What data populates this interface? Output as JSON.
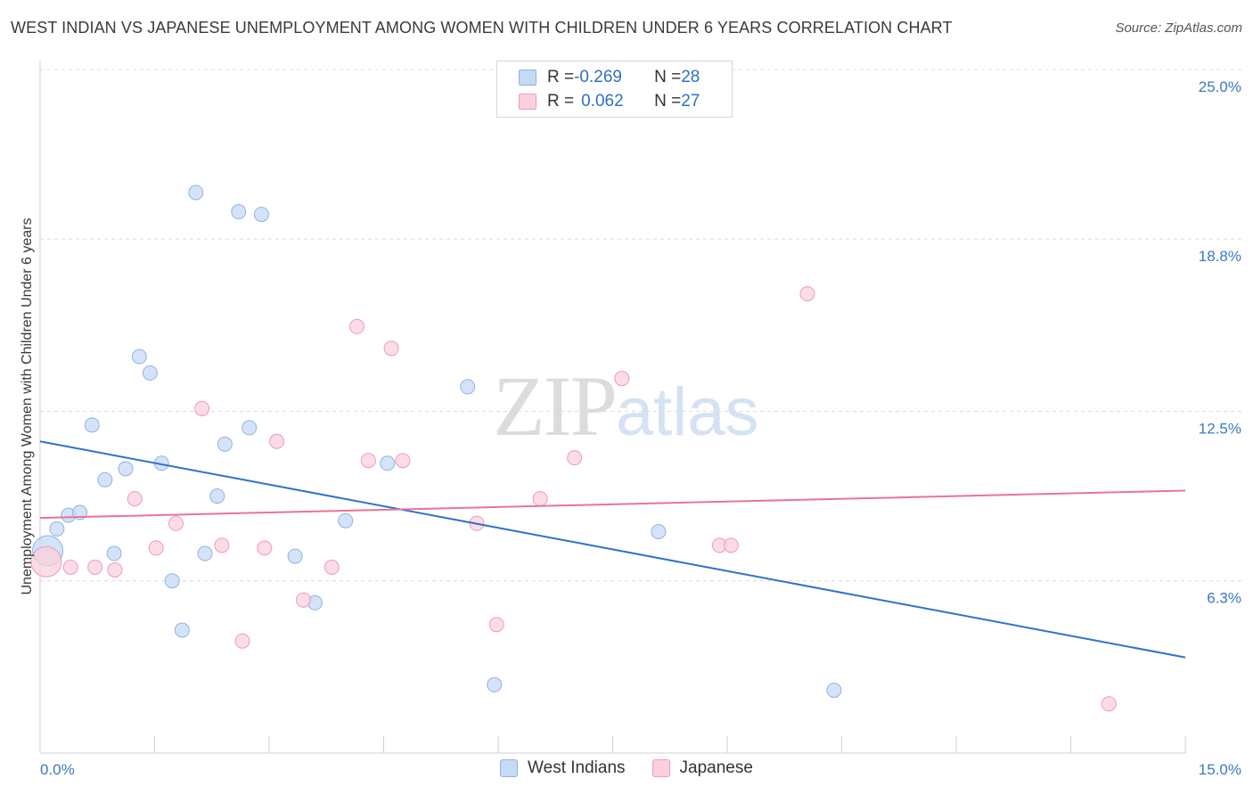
{
  "title": "WEST INDIAN VS JAPANESE UNEMPLOYMENT AMONG WOMEN WITH CHILDREN UNDER 6 YEARS CORRELATION CHART",
  "source": "Source: ZipAtlas.com",
  "watermark": {
    "zip": "ZIP",
    "atlas": "atlas"
  },
  "legend": {
    "rows": [
      {
        "r_label": "R = ",
        "r_value": "-0.269",
        "n_label": "N = ",
        "n_value": "28"
      },
      {
        "r_label": "R = ",
        "r_value": "0.062",
        "n_label": "N = ",
        "n_value": "27"
      }
    ]
  },
  "bottom_legend": {
    "series1": "West Indians",
    "series2": "Japanese"
  },
  "colors": {
    "west_indians_fill": "#c5daf5",
    "west_indians_stroke": "#8fb3e3",
    "west_indians_line": "#2e72cc",
    "japanese_fill": "#fbd0dc",
    "japanese_stroke": "#ee9bb4",
    "japanese_line": "#e8739b",
    "tick_label": "#3b78c4"
  },
  "chart_data": {
    "type": "scatter",
    "title": "WEST INDIAN VS JAPANESE UNEMPLOYMENT AMONG WOMEN WITH CHILDREN UNDER 6 YEARS CORRELATION CHART",
    "xlabel": "",
    "ylabel": "Unemployment Among Women with Children Under 6 years",
    "xlim": [
      0,
      15
    ],
    "ylim": [
      0,
      25
    ],
    "x_tick_labels": [
      "0.0%",
      "15.0%"
    ],
    "y_ticks": [
      6.3,
      12.5,
      18.8,
      25.0
    ],
    "y_tick_labels": [
      "6.3%",
      "12.5%",
      "18.8%",
      "25.0%"
    ],
    "grid": "horizontal dashed",
    "legend_position": "top-center",
    "series": [
      {
        "name": "West Indians",
        "r": -0.269,
        "n": 28,
        "trend": {
          "x": [
            0,
            15
          ],
          "y": [
            11.4,
            3.5
          ]
        },
        "points": [
          {
            "x": 0.1,
            "y": 7.4,
            "size": "large"
          },
          {
            "x": 0.22,
            "y": 8.2
          },
          {
            "x": 0.37,
            "y": 8.7
          },
          {
            "x": 0.52,
            "y": 8.8
          },
          {
            "x": 0.68,
            "y": 12.0
          },
          {
            "x": 0.85,
            "y": 10.0
          },
          {
            "x": 0.97,
            "y": 7.3
          },
          {
            "x": 1.12,
            "y": 10.4
          },
          {
            "x": 1.3,
            "y": 14.5
          },
          {
            "x": 1.44,
            "y": 13.9
          },
          {
            "x": 1.59,
            "y": 10.6
          },
          {
            "x": 1.73,
            "y": 6.3
          },
          {
            "x": 1.86,
            "y": 4.5
          },
          {
            "x": 2.04,
            "y": 20.5
          },
          {
            "x": 2.16,
            "y": 7.3
          },
          {
            "x": 2.32,
            "y": 9.4
          },
          {
            "x": 2.42,
            "y": 11.3
          },
          {
            "x": 2.6,
            "y": 19.8
          },
          {
            "x": 2.74,
            "y": 11.9
          },
          {
            "x": 2.9,
            "y": 19.7
          },
          {
            "x": 3.34,
            "y": 7.2
          },
          {
            "x": 3.6,
            "y": 5.5
          },
          {
            "x": 4.0,
            "y": 8.5
          },
          {
            "x": 4.55,
            "y": 10.6
          },
          {
            "x": 5.6,
            "y": 13.4
          },
          {
            "x": 5.95,
            "y": 2.5
          },
          {
            "x": 8.1,
            "y": 8.1
          },
          {
            "x": 10.4,
            "y": 2.3
          }
        ]
      },
      {
        "name": "Japanese",
        "r": 0.062,
        "n": 27,
        "trend": {
          "x": [
            0,
            15
          ],
          "y": [
            8.6,
            9.6
          ]
        },
        "points": [
          {
            "x": 0.08,
            "y": 7.0,
            "size": "large"
          },
          {
            "x": 0.4,
            "y": 6.8
          },
          {
            "x": 0.72,
            "y": 6.8
          },
          {
            "x": 0.98,
            "y": 6.7
          },
          {
            "x": 1.24,
            "y": 9.3
          },
          {
            "x": 1.52,
            "y": 7.5
          },
          {
            "x": 1.78,
            "y": 8.4
          },
          {
            "x": 2.12,
            "y": 12.6
          },
          {
            "x": 2.38,
            "y": 7.6
          },
          {
            "x": 2.65,
            "y": 4.1
          },
          {
            "x": 2.94,
            "y": 7.5
          },
          {
            "x": 3.1,
            "y": 11.4
          },
          {
            "x": 3.45,
            "y": 5.6
          },
          {
            "x": 3.82,
            "y": 6.8
          },
          {
            "x": 4.15,
            "y": 15.6
          },
          {
            "x": 4.3,
            "y": 10.7
          },
          {
            "x": 4.6,
            "y": 14.8
          },
          {
            "x": 4.75,
            "y": 10.7
          },
          {
            "x": 5.72,
            "y": 8.4
          },
          {
            "x": 5.98,
            "y": 4.7
          },
          {
            "x": 6.55,
            "y": 9.3
          },
          {
            "x": 7.0,
            "y": 10.8
          },
          {
            "x": 7.62,
            "y": 13.7
          },
          {
            "x": 8.9,
            "y": 7.6
          },
          {
            "x": 9.05,
            "y": 7.6
          },
          {
            "x": 10.05,
            "y": 16.8
          },
          {
            "x": 14.0,
            "y": 1.8
          }
        ]
      }
    ]
  }
}
